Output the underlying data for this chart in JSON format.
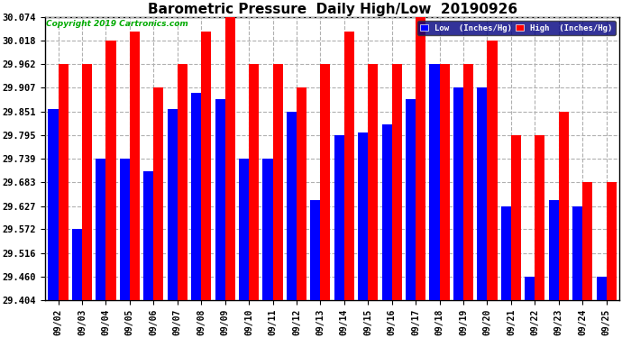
{
  "title": "Barometric Pressure  Daily High/Low  20190926",
  "copyright": "Copyright 2019 Cartronics.com",
  "dates": [
    "09/02",
    "09/03",
    "09/04",
    "09/05",
    "09/06",
    "09/07",
    "09/08",
    "09/09",
    "09/10",
    "09/11",
    "09/12",
    "09/13",
    "09/14",
    "09/15",
    "09/16",
    "09/17",
    "09/18",
    "09/19",
    "09/20",
    "09/21",
    "09/22",
    "09/23",
    "09/24",
    "09/25"
  ],
  "low_values": [
    29.856,
    29.572,
    29.74,
    29.739,
    29.71,
    29.856,
    29.895,
    29.88,
    29.739,
    29.739,
    29.851,
    29.64,
    29.795,
    29.8,
    29.82,
    29.88,
    29.962,
    29.907,
    29.907,
    29.627,
    29.46,
    29.64,
    29.627,
    29.46
  ],
  "high_values": [
    29.962,
    29.962,
    30.018,
    30.04,
    29.907,
    29.962,
    30.04,
    30.074,
    29.962,
    29.962,
    29.907,
    29.962,
    30.04,
    29.962,
    29.962,
    30.074,
    29.962,
    29.962,
    30.018,
    29.795,
    29.795,
    29.851,
    29.683,
    29.683
  ],
  "low_color": "#0000ff",
  "high_color": "#ff0000",
  "bg_color": "#ffffff",
  "ylim_min": 29.404,
  "ylim_max": 30.074,
  "yticks": [
    29.404,
    29.46,
    29.516,
    29.572,
    29.627,
    29.683,
    29.739,
    29.795,
    29.851,
    29.907,
    29.962,
    30.018,
    30.074
  ],
  "grid_color": "#b0b0b0",
  "title_fontsize": 11,
  "legend_low_label": "Low  (Inches/Hg)",
  "legend_high_label": "High  (Inches/Hg)",
  "bar_width": 0.42,
  "figwidth": 6.9,
  "figheight": 3.75,
  "dpi": 100
}
